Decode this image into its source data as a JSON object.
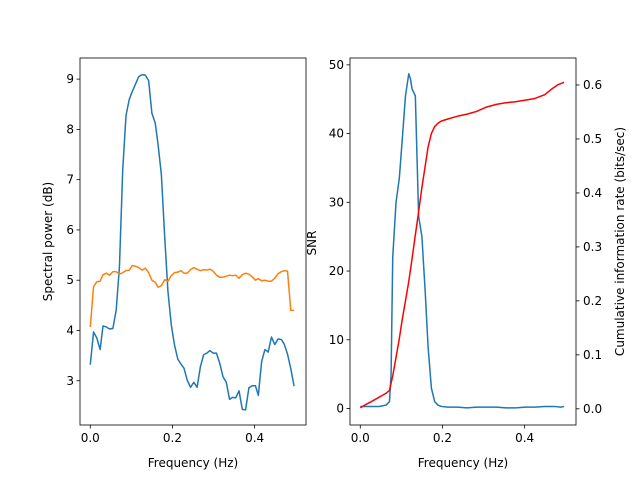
{
  "chart_data": [
    {
      "type": "line",
      "xlabel": "Frequency (Hz)",
      "ylabel": "Spectral power (dB)",
      "xlim": [
        -0.025,
        0.525
      ],
      "ylim": [
        2.12,
        9.42
      ],
      "xticks": [
        0.0,
        0.2,
        0.4
      ],
      "xtick_labels": [
        "0.0",
        "0.2",
        "0.4"
      ],
      "yticks": [
        3,
        4,
        5,
        6,
        7,
        8,
        9
      ],
      "ytick_labels": [
        "3",
        "4",
        "5",
        "6",
        "7",
        "8",
        "9"
      ],
      "grid": false,
      "series": [
        {
          "color": "#1f77b4",
          "x": [
            0.0,
            0.008,
            0.016,
            0.024,
            0.031,
            0.039,
            0.047,
            0.055,
            0.063,
            0.071,
            0.079,
            0.087,
            0.095,
            0.102,
            0.11,
            0.118,
            0.126,
            0.134,
            0.142,
            0.15,
            0.158,
            0.165,
            0.173,
            0.181,
            0.189,
            0.197,
            0.205,
            0.213,
            0.221,
            0.228,
            0.236,
            0.244,
            0.252,
            0.26,
            0.268,
            0.276,
            0.284,
            0.291,
            0.299,
            0.307,
            0.315,
            0.323,
            0.331,
            0.339,
            0.346,
            0.354,
            0.362,
            0.37,
            0.378,
            0.386,
            0.394,
            0.402,
            0.409,
            0.417,
            0.425,
            0.433,
            0.441,
            0.449,
            0.457,
            0.465,
            0.472,
            0.48,
            0.488,
            0.496
          ],
          "values": [
            3.32,
            3.97,
            3.85,
            3.62,
            4.09,
            4.07,
            4.03,
            4.04,
            4.4,
            5.27,
            7.2,
            8.28,
            8.6,
            8.75,
            8.9,
            9.05,
            9.09,
            9.08,
            8.97,
            8.32,
            8.13,
            7.7,
            7.1,
            5.88,
            4.78,
            4.12,
            3.71,
            3.43,
            3.33,
            3.25,
            3.01,
            2.87,
            2.97,
            2.87,
            3.28,
            3.52,
            3.55,
            3.6,
            3.55,
            3.55,
            3.35,
            3.08,
            2.97,
            2.63,
            2.67,
            2.66,
            2.8,
            2.43,
            2.42,
            2.86,
            2.9,
            2.9,
            2.71,
            3.38,
            3.62,
            3.57,
            3.87,
            3.72,
            3.83,
            3.82,
            3.73,
            3.53,
            3.24,
            2.89
          ]
        },
        {
          "color": "#ff7f0e",
          "x": [
            0.0,
            0.008,
            0.016,
            0.024,
            0.031,
            0.039,
            0.047,
            0.055,
            0.063,
            0.071,
            0.079,
            0.087,
            0.095,
            0.102,
            0.11,
            0.118,
            0.126,
            0.134,
            0.142,
            0.15,
            0.158,
            0.165,
            0.173,
            0.181,
            0.189,
            0.197,
            0.205,
            0.213,
            0.221,
            0.228,
            0.236,
            0.244,
            0.252,
            0.26,
            0.268,
            0.276,
            0.284,
            0.291,
            0.299,
            0.307,
            0.315,
            0.323,
            0.331,
            0.339,
            0.346,
            0.354,
            0.362,
            0.37,
            0.378,
            0.386,
            0.394,
            0.402,
            0.409,
            0.417,
            0.425,
            0.433,
            0.441,
            0.449,
            0.457,
            0.465,
            0.472,
            0.48,
            0.488,
            0.496
          ],
          "values": [
            4.07,
            4.87,
            4.97,
            4.98,
            5.11,
            5.14,
            5.1,
            5.17,
            5.17,
            5.12,
            5.15,
            5.19,
            5.2,
            5.29,
            5.28,
            5.25,
            5.2,
            5.24,
            5.15,
            5.0,
            4.96,
            4.86,
            4.89,
            5.01,
            4.98,
            5.09,
            5.15,
            5.16,
            5.19,
            5.14,
            5.14,
            5.21,
            5.25,
            5.22,
            5.19,
            5.21,
            5.2,
            5.22,
            5.18,
            5.1,
            5.06,
            5.06,
            5.08,
            5.1,
            5.09,
            5.1,
            5.04,
            5.11,
            5.14,
            5.12,
            5.07,
            5.0,
            5.03,
            4.99,
            5.0,
            4.98,
            4.98,
            5.04,
            5.13,
            5.17,
            5.19,
            5.18,
            4.4,
            4.4
          ]
        }
      ]
    },
    {
      "type": "line",
      "xlabel": "Frequency (Hz)",
      "ylabel": "SNR",
      "ylabel_right": "Cumulative information rate (bits/sec)",
      "xlim": [
        -0.025,
        0.525
      ],
      "ylim": [
        -2.4,
        51
      ],
      "ylim_right": [
        -0.03,
        0.65
      ],
      "xticks": [
        0.0,
        0.2,
        0.4
      ],
      "xtick_labels": [
        "0.0",
        "0.2",
        "0.4"
      ],
      "yticks": [
        0,
        10,
        20,
        30,
        40,
        50
      ],
      "ytick_labels": [
        "0",
        "10",
        "20",
        "30",
        "40",
        "50"
      ],
      "yticks_right": [
        0.0,
        0.1,
        0.2,
        0.3,
        0.4,
        0.5,
        0.6
      ],
      "ytick_labels_right": [
        "0.0",
        "0.1",
        "0.2",
        "0.3",
        "0.4",
        "0.5",
        "0.6"
      ],
      "grid": false,
      "series": [
        {
          "color": "#1f77b4",
          "axis": "left",
          "x": [
            0.0,
            0.008,
            0.016,
            0.024,
            0.031,
            0.039,
            0.047,
            0.055,
            0.063,
            0.071,
            0.075,
            0.079,
            0.087,
            0.095,
            0.102,
            0.11,
            0.118,
            0.122,
            0.126,
            0.134,
            0.142,
            0.15,
            0.158,
            0.165,
            0.173,
            0.181,
            0.189,
            0.197,
            0.213,
            0.236,
            0.26,
            0.283,
            0.307,
            0.331,
            0.354,
            0.378,
            0.402,
            0.425,
            0.449,
            0.472,
            0.488,
            0.496
          ],
          "values": [
            0.3,
            0.3,
            0.3,
            0.3,
            0.3,
            0.3,
            0.3,
            0.4,
            0.5,
            1.0,
            5.0,
            22.0,
            30.0,
            33.5,
            39.0,
            45.5,
            48.7,
            48.0,
            46.5,
            45.5,
            28.0,
            25.0,
            17.0,
            9.0,
            3.0,
            1.0,
            0.5,
            0.3,
            0.2,
            0.2,
            0.1,
            0.2,
            0.2,
            0.2,
            0.1,
            0.1,
            0.2,
            0.2,
            0.3,
            0.3,
            0.2,
            0.3
          ]
        },
        {
          "color": "#ff0000",
          "axis": "right",
          "x": [
            0.0,
            0.016,
            0.031,
            0.047,
            0.063,
            0.071,
            0.079,
            0.087,
            0.095,
            0.102,
            0.11,
            0.118,
            0.126,
            0.134,
            0.142,
            0.15,
            0.158,
            0.165,
            0.173,
            0.181,
            0.189,
            0.197,
            0.213,
            0.236,
            0.26,
            0.283,
            0.307,
            0.331,
            0.354,
            0.378,
            0.402,
            0.425,
            0.449,
            0.465,
            0.48,
            0.496
          ],
          "values": [
            0.002,
            0.009,
            0.015,
            0.022,
            0.029,
            0.034,
            0.061,
            0.095,
            0.13,
            0.165,
            0.2,
            0.236,
            0.278,
            0.322,
            0.365,
            0.41,
            0.45,
            0.485,
            0.51,
            0.523,
            0.529,
            0.533,
            0.537,
            0.542,
            0.546,
            0.551,
            0.559,
            0.564,
            0.567,
            0.569,
            0.572,
            0.575,
            0.582,
            0.592,
            0.6,
            0.605
          ]
        }
      ]
    }
  ]
}
